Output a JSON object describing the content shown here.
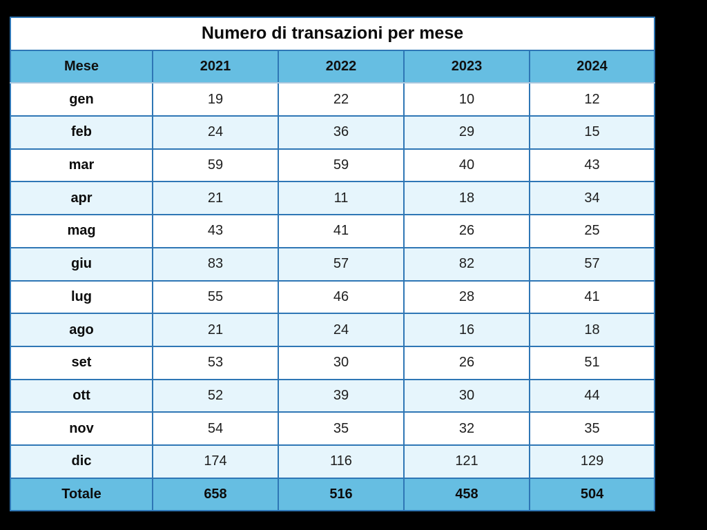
{
  "colors": {
    "page_background": "#000000",
    "header_background": "#66BEE2",
    "total_background": "#66BEE2",
    "row_white": "#FFFFFF",
    "row_alt": "#E6F5FC",
    "border": "#2E76B5",
    "header_bottom_border": "#A9C7DE",
    "text": "#1E1E1E"
  },
  "chart_data": {
    "type": "table",
    "title": "Numero di transazioni per mese",
    "columns": [
      "Mese",
      "2021",
      "2022",
      "2023",
      "2024"
    ],
    "rows": [
      {
        "label": "gen",
        "values": [
          19,
          22,
          10,
          12
        ]
      },
      {
        "label": "feb",
        "values": [
          24,
          36,
          29,
          15
        ]
      },
      {
        "label": "mar",
        "values": [
          59,
          59,
          40,
          43
        ]
      },
      {
        "label": "apr",
        "values": [
          21,
          11,
          18,
          34
        ]
      },
      {
        "label": "mag",
        "values": [
          43,
          41,
          26,
          25
        ]
      },
      {
        "label": "giu",
        "values": [
          83,
          57,
          82,
          57
        ]
      },
      {
        "label": "lug",
        "values": [
          55,
          46,
          28,
          41
        ]
      },
      {
        "label": "ago",
        "values": [
          21,
          24,
          16,
          18
        ]
      },
      {
        "label": "set",
        "values": [
          53,
          30,
          26,
          51
        ]
      },
      {
        "label": "ott",
        "values": [
          52,
          39,
          30,
          44
        ]
      },
      {
        "label": "nov",
        "values": [
          54,
          35,
          32,
          35
        ]
      },
      {
        "label": "dic",
        "values": [
          174,
          116,
          121,
          129
        ]
      }
    ],
    "total": {
      "label": "Totale",
      "values": [
        658,
        516,
        458,
        504
      ]
    }
  }
}
